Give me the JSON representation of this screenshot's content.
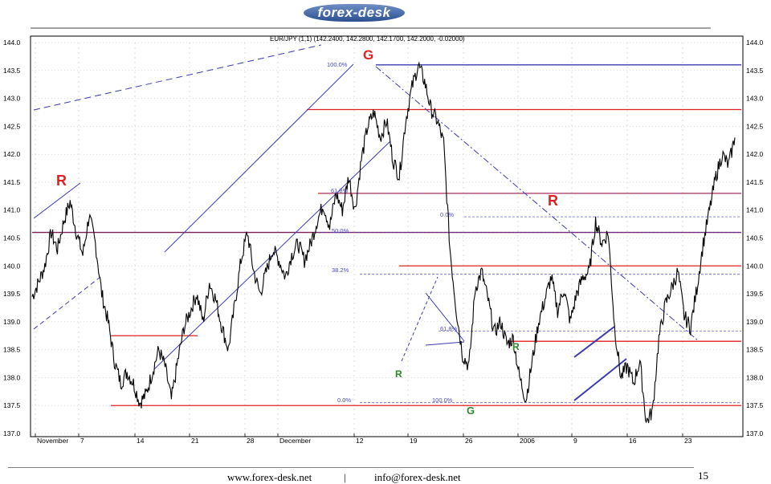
{
  "header": {
    "logo_text": "forex-desk"
  },
  "chart_data": {
    "type": "line",
    "title": "EUR/JPY (1,1) (142.2400, 142.2800, 142.1700, 142.2000, -0.02000)",
    "ylim": [
      137.0,
      144.0
    ],
    "y_ticks": [
      "144.0",
      "143.5",
      "143.0",
      "142.5",
      "142.0",
      "141.5",
      "141.0",
      "140.5",
      "140.0",
      "139.5",
      "139.0",
      "138.5",
      "138.0",
      "137.5",
      "137.0"
    ],
    "x_ticks": [
      "November",
      "7",
      "14",
      "21",
      "28",
      "December",
      "12",
      "19",
      "26",
      "2006",
      "9",
      "16",
      "23"
    ],
    "grid": true,
    "series": [
      {
        "values": [
          139.45,
          139.7,
          140.0,
          140.6,
          140.3,
          140.8,
          141.15,
          140.6,
          140.2,
          140.9,
          140.4,
          139.5,
          139.0,
          138.3,
          137.9,
          138.1,
          137.9,
          137.55,
          137.7,
          138.1,
          138.5,
          138.2,
          137.6,
          138.3,
          138.9,
          139.2,
          139.5,
          139.0,
          139.7,
          139.4,
          138.9,
          138.5,
          139.3,
          140.1,
          140.6,
          139.9,
          139.5,
          139.9,
          140.3,
          140.1,
          139.8,
          140.2,
          140.4,
          140.1,
          140.4,
          140.8,
          141.1,
          140.7,
          141.3,
          141.0,
          141.6,
          141.0,
          141.9,
          142.5,
          142.75,
          142.3,
          142.6,
          141.9,
          141.6,
          142.6,
          143.2,
          143.6,
          143.3,
          142.8,
          142.6,
          142.2,
          140.3,
          139.2,
          138.4,
          138.2,
          139.6,
          139.9,
          139.4,
          138.8,
          139.0,
          138.6,
          138.7,
          138.0,
          137.6,
          138.3,
          139.0,
          139.4,
          139.8,
          139.2,
          139.6,
          139.0,
          139.5,
          139.8,
          139.9,
          140.8,
          140.4,
          140.6,
          138.9,
          138.0,
          138.2,
          137.9,
          138.3,
          137.2,
          137.4,
          138.7,
          139.3,
          139.6,
          139.9,
          139.1,
          138.9,
          139.6,
          140.4,
          141.0,
          141.6,
          142.0,
          141.8,
          142.3
        ]
      }
    ],
    "annotations": [
      {
        "text": "R",
        "color": "#e02020",
        "kind": "resistance-label"
      },
      {
        "text": "G",
        "color": "#e02020",
        "kind": "resistance-label"
      },
      {
        "text": "R",
        "color": "#e02020",
        "kind": "resistance-label"
      },
      {
        "text": "R",
        "color": "#2a8a2a",
        "kind": "support-label"
      },
      {
        "text": "G",
        "color": "#2a8a2a",
        "kind": "support-label"
      },
      {
        "text": "R",
        "color": "#2a8a2a",
        "kind": "support-label"
      }
    ],
    "fib_labels": {
      "retracement": [
        "100.0%",
        "61.8%",
        "50.0%",
        "38.2%",
        "0.0%"
      ],
      "extension": [
        "0.0%",
        "61.8%",
        "100.0%"
      ]
    },
    "horizontal_levels": [
      143.6,
      142.8,
      141.3,
      140.6,
      140.0,
      138.65,
      137.5
    ],
    "colors": {
      "price": "#000000",
      "support_resistance": "#e02020",
      "trendline": "#3a3ab0",
      "fib": "#4a4ac8",
      "grid": "#b8b8b8"
    }
  },
  "footer": {
    "url": "www.forex-desk.net",
    "separator": "|",
    "email": "info@forex-desk.net",
    "page_number": "15"
  }
}
